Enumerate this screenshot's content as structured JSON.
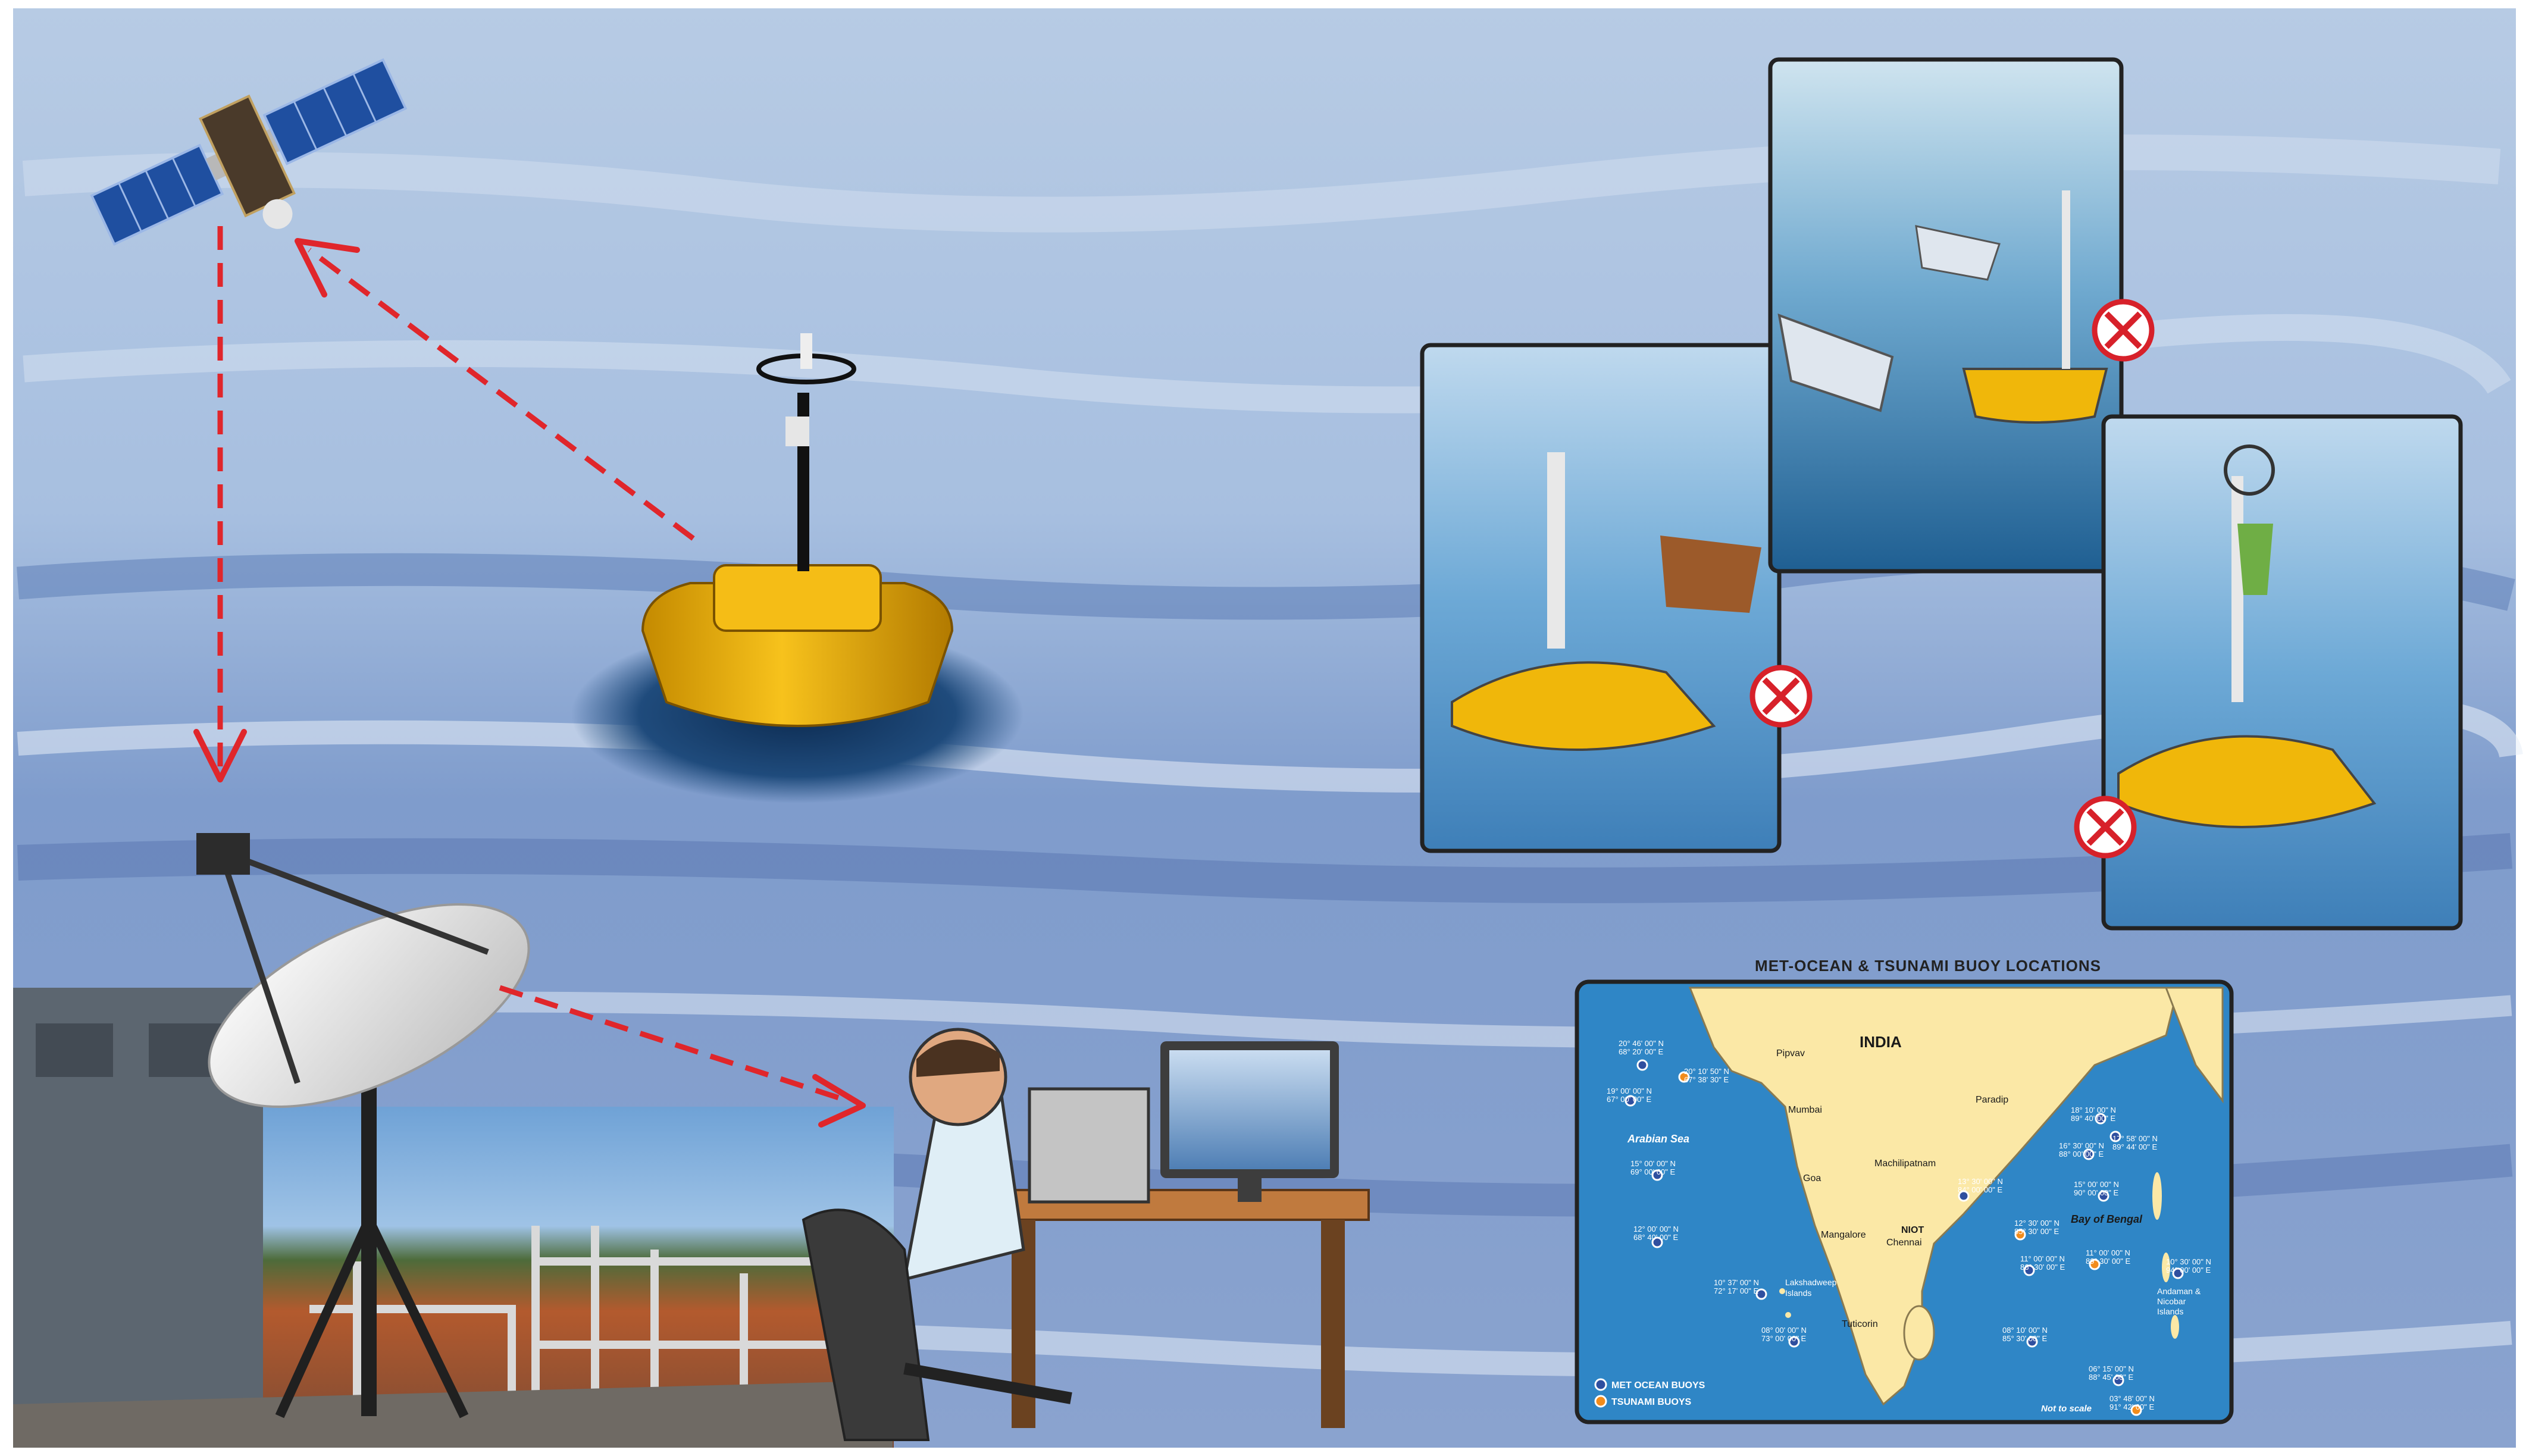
{
  "map": {
    "title": "MET-OCEAN & TSUNAMI BUOY LOCATIONS",
    "country": "INDIA",
    "seas": {
      "arabian": "Arabian Sea",
      "bengal": "Bay of Bengal"
    },
    "cities": {
      "pipavav": "Pipvav",
      "mumbai": "Mumbai",
      "goa": "Goa",
      "mangalore": "Mangalore",
      "niot": "NIOT",
      "chennai": "Chennai",
      "machilipatnam": "Machilipatnam",
      "paradip": "Paradip",
      "tuticorin": "Tuticorin"
    },
    "islands": {
      "lakshadweep": [
        "Lakshadweep",
        "Islands"
      ],
      "andaman": [
        "Andaman &",
        "Nicobar",
        "Islands"
      ]
    },
    "buoys": [
      {
        "type": "met",
        "lat": "20° 46' 00\" N",
        "lon": "68° 20' 00\" E"
      },
      {
        "type": "tsunami",
        "lat": "20° 10' 50\" N",
        "lon": "67° 38' 30\" E"
      },
      {
        "type": "met",
        "lat": "19° 00' 00\" N",
        "lon": "67° 00' 00\" E"
      },
      {
        "type": "met",
        "lat": "15° 00' 00\" N",
        "lon": "69° 00' 00\" E"
      },
      {
        "type": "met",
        "lat": "12° 00' 00\" N",
        "lon": "68° 40' 00\" E"
      },
      {
        "type": "met",
        "lat": "10° 37' 00\" N",
        "lon": "72° 17' 00\" E"
      },
      {
        "type": "met",
        "lat": "08° 00' 00\" N",
        "lon": "73° 00' 00\" E"
      },
      {
        "type": "met",
        "lat": "18° 10' 00\" N",
        "lon": "89° 40' 00\" E"
      },
      {
        "type": "met",
        "lat": "17° 58' 00\" N",
        "lon": "89° 44' 00\" E"
      },
      {
        "type": "met",
        "lat": "16° 30' 00\" N",
        "lon": "88° 00' 00\" E"
      },
      {
        "type": "met",
        "lat": "15° 00' 00\" N",
        "lon": "90° 00' 00\" E"
      },
      {
        "type": "met",
        "lat": "13° 30' 00\" N",
        "lon": "84° 00' 00\" E"
      },
      {
        "type": "tsunami",
        "lat": "12° 30' 00\" N",
        "lon": "85° 30' 00\" E"
      },
      {
        "type": "met",
        "lat": "11° 00' 00\" N",
        "lon": "86° 30' 00\" E"
      },
      {
        "type": "tsunami",
        "lat": "11° 00' 00\" N",
        "lon": "89° 30' 00\" E"
      },
      {
        "type": "met",
        "lat": "10° 30' 00\" N",
        "lon": "94° 00' 00\" E"
      },
      {
        "type": "met",
        "lat": "08° 10' 00\" N",
        "lon": "85° 30' 00\" E"
      },
      {
        "type": "met",
        "lat": "06° 15' 00\" N",
        "lon": "88° 45' 00\" E"
      },
      {
        "type": "tsunami",
        "lat": "03° 48' 00\" N",
        "lon": "91° 42' 00\" E"
      }
    ],
    "legend": {
      "met": "MET OCEAN BUOYS",
      "tsunami": "TSUNAMI BUOYS"
    },
    "scale_note": "Not to scale"
  },
  "colors": {
    "sky_top": "#a9c0dc",
    "sea": "#6d8fc4",
    "arrow": "#e0262b",
    "buoy_yellow": "#f2b705",
    "prohibited": "#d7212a",
    "map_sea": "#2f86c6",
    "map_land": "#fbe8a6",
    "met_buoy": "#2f4f9f",
    "tsunami_buoy": "#f28c1c"
  },
  "icons": [
    "satellite-icon",
    "buoy-icon",
    "dish-antenna-icon",
    "operator-workstation-icon",
    "prohibited-icon"
  ]
}
